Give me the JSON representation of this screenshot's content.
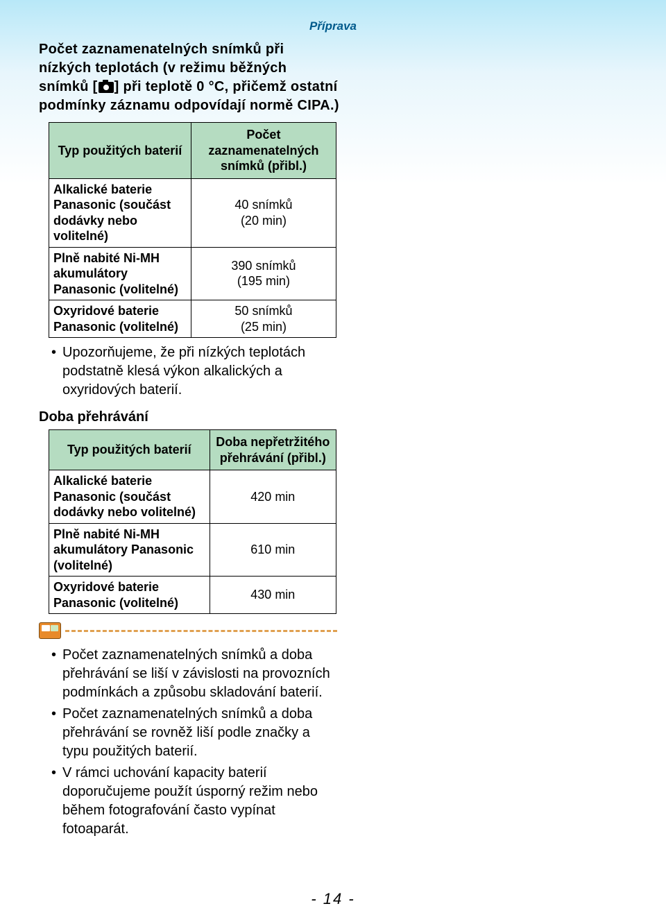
{
  "header_title": "Příprava",
  "intro": {
    "before": "Počet zaznamenatelných snímků při nízkých teplotách (v režimu běžných snímků [",
    "after": "] při teplotě 0 °C, přičemž ostatní podmínky záznamu odpovídají normě CIPA.)"
  },
  "table1": {
    "col1": "Typ použitých baterií",
    "col2": "Počet zaznamenatelných snímků (přibl.)",
    "rows": [
      {
        "label": "Alkalické baterie Panasonic (součást dodávky nebo volitelné)",
        "value": "40 snímků\n(20 min)"
      },
      {
        "label": "Plně nabité Ni-MH akumulátory Panasonic (volitelné)",
        "value": "390 snímků\n(195 min)"
      },
      {
        "label": "Oxyridové baterie Panasonic (volitelné)",
        "value": "50 snímků\n(25 min)"
      }
    ]
  },
  "note1": "Upozorňujeme, že při nízkých teplotách podstatně klesá výkon alkalických a oxyridových baterií.",
  "section2_title": "Doba přehrávání",
  "table2": {
    "col1": "Typ použitých baterií",
    "col2": "Doba nepřetržitého přehrávání (přibl.)",
    "rows": [
      {
        "label": "Alkalické baterie Panasonic (součást dodávky nebo volitelné)",
        "value": "420 min"
      },
      {
        "label": "Plně nabité Ni-MH akumulátory Panasonic (volitelné)",
        "value": "610 min"
      },
      {
        "label": "Oxyridové baterie Panasonic (volitelné)",
        "value": "430 min"
      }
    ]
  },
  "notes2": [
    "Počet zaznamenatelných snímků a doba přehrávání se liší v závislosti na provozních podmínkách a způsobu skladování baterií.",
    "Počet zaznamenatelných snímků a doba přehrávání se rovněž liší podle značky a typu použitých baterií.",
    "V rámci uchování kapacity baterií doporučujeme použít úsporný režim nebo během fotografování často vypínat fotoaparát."
  ],
  "page_number": "- 14 -",
  "colors": {
    "header_text": "#005a8c",
    "table_header_bg": "#b5dcc1",
    "dash_color": "#e0a050",
    "icon_bg": "#e88a2a"
  }
}
